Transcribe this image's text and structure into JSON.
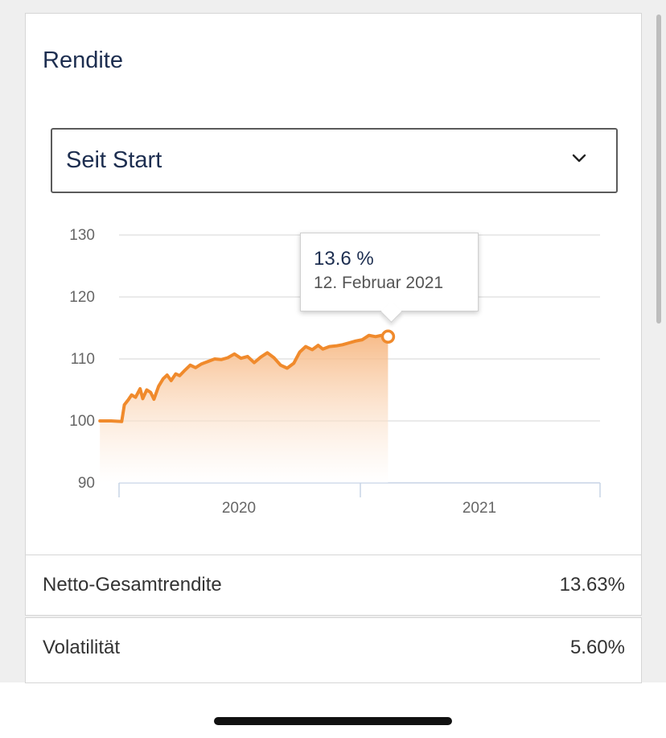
{
  "card": {
    "title": "Rendite"
  },
  "period_select": {
    "value": "Seit Start",
    "icon": "chevron-down-icon"
  },
  "tooltip": {
    "value": "13.6 %",
    "date": "12. Februar 2021"
  },
  "stats": [
    {
      "label": "Netto-Gesamtrendite",
      "value": "13.63%"
    },
    {
      "label": "Volatilität",
      "value": "5.60%"
    }
  ],
  "colors": {
    "line": "#f08a2c",
    "area_top": "#f6b47c",
    "title_text": "#1d2e50",
    "grid": "#e3e3e3",
    "axis": "#c7d4e6"
  },
  "chart_data": {
    "type": "area",
    "title": "",
    "xlabel": "",
    "ylabel": "",
    "ylim": [
      90,
      130
    ],
    "yticks": [
      90,
      100,
      110,
      120,
      130
    ],
    "xticks": [
      "2020",
      "2021"
    ],
    "grid": true,
    "series": [
      {
        "x": [
          "2019-12-03",
          "2019-12-20",
          "2020-01-05",
          "2020-01-09",
          "2020-01-15",
          "2020-01-20",
          "2020-01-26",
          "2020-02-02",
          "2020-02-06",
          "2020-02-12",
          "2020-02-18",
          "2020-02-23",
          "2020-03-01",
          "2020-03-08",
          "2020-03-14",
          "2020-03-20",
          "2020-03-27",
          "2020-04-02",
          "2020-04-10",
          "2020-04-18",
          "2020-04-26",
          "2020-05-05",
          "2020-05-15",
          "2020-05-25",
          "2020-06-04",
          "2020-06-14",
          "2020-06-24",
          "2020-07-04",
          "2020-07-14",
          "2020-07-24",
          "2020-08-03",
          "2020-08-13",
          "2020-08-23",
          "2020-09-02",
          "2020-09-12",
          "2020-09-22",
          "2020-10-01",
          "2020-10-10",
          "2020-10-20",
          "2020-10-29",
          "2020-11-05",
          "2020-11-15",
          "2020-11-25",
          "2020-12-05",
          "2020-12-15",
          "2020-12-25",
          "2021-01-04",
          "2021-01-14",
          "2021-01-24",
          "2021-02-02",
          "2021-02-07",
          "2021-02-12"
        ],
        "y": [
          100.0,
          100.0,
          99.9,
          102.6,
          103.4,
          104.2,
          103.8,
          105.2,
          103.6,
          105.0,
          104.6,
          103.5,
          105.6,
          106.8,
          107.4,
          106.5,
          107.6,
          107.3,
          108.2,
          109.0,
          108.6,
          109.2,
          109.6,
          110.0,
          109.9,
          110.2,
          110.8,
          110.1,
          110.4,
          109.4,
          110.3,
          111.0,
          110.2,
          109.0,
          108.5,
          109.3,
          111.1,
          112.0,
          111.5,
          112.2,
          111.6,
          112.0,
          112.1,
          112.3,
          112.6,
          112.9,
          113.1,
          113.8,
          113.6,
          113.8,
          113.3,
          113.6
        ]
      }
    ]
  }
}
